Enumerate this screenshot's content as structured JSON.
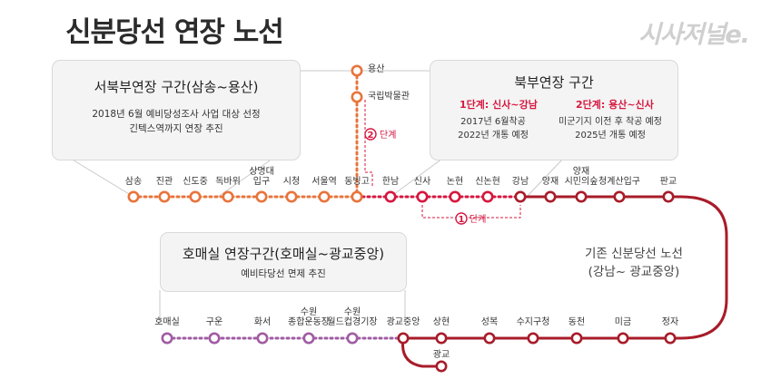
{
  "title": "신분당선 연장 노선",
  "logo_text": "시사저널e.",
  "colors": {
    "northwest": "#e8743b",
    "north": "#d6173f",
    "existing": "#a81c2a",
    "homaesil": "#a05ca3",
    "gray_line": "#c9c9c9"
  },
  "northwest_box": {
    "heading": "서북부연장 구간(삼송~용산)",
    "line1": "2018년 6월 예비당성조사 사업 대상 선정",
    "line2": "긴텍스역까지 연장 추진"
  },
  "north_box": {
    "heading": "북부연장 구간",
    "phase1_title": "1단계: 신사~강남",
    "phase1_line1": "2017년 6월착공",
    "phase1_line2": "2022년 개통 예정",
    "phase2_title": "2단계: 용산~신사",
    "phase2_line1": "미군기지 이전 후 착공 예정",
    "phase2_line2": "2025년 개통 예정"
  },
  "homaesil_box": {
    "heading": "호매실 연장구간(호매실~광교중앙)",
    "line1": "예비타당선 면제 추진"
  },
  "existing_label": {
    "line1": "기존 신분당선 노선",
    "line2": "(강남~ 광교중앙)"
  },
  "branch_stations": [
    "용산",
    "국립박물관"
  ],
  "phase_labels": {
    "phase1_num": "1",
    "phase1_text": "단계",
    "phase2_num": "2",
    "phase2_text": "단계"
  },
  "top_row_stations": [
    {
      "name": "삼송",
      "line": "northwest"
    },
    {
      "name": "진관",
      "line": "northwest"
    },
    {
      "name": "신도중",
      "line": "northwest"
    },
    {
      "name": "독바위",
      "line": "northwest"
    },
    {
      "name": "상명대\n입구",
      "line": "northwest"
    },
    {
      "name": "시청",
      "line": "northwest"
    },
    {
      "name": "서울역",
      "line": "northwest"
    },
    {
      "name": "동빙고",
      "line": "northwest"
    },
    {
      "name": "한남",
      "line": "north"
    },
    {
      "name": "신사",
      "line": "north"
    },
    {
      "name": "논현",
      "line": "north"
    },
    {
      "name": "신논현",
      "line": "north"
    },
    {
      "name": "강남",
      "line": "existing"
    },
    {
      "name": "양재",
      "line": "existing"
    },
    {
      "name": "양재\n시민의숲",
      "line": "existing"
    },
    {
      "name": "청계산입구",
      "line": "existing"
    },
    {
      "name": "판교",
      "line": "existing"
    }
  ],
  "bottom_row_stations": [
    {
      "name": "호매실",
      "line": "homaesil"
    },
    {
      "name": "구운",
      "line": "homaesil"
    },
    {
      "name": "화서",
      "line": "homaesil"
    },
    {
      "name": "수원\n종합운동장",
      "line": "homaesil"
    },
    {
      "name": "수원\n월드컵경기장",
      "line": "homaesil"
    },
    {
      "name": "광교중앙",
      "line": "existing"
    },
    {
      "name": "상현",
      "line": "existing"
    },
    {
      "name": "성복",
      "line": "existing"
    },
    {
      "name": "수지구청",
      "line": "existing"
    },
    {
      "name": "동천",
      "line": "existing"
    },
    {
      "name": "미금",
      "line": "existing"
    },
    {
      "name": "정자",
      "line": "existing"
    }
  ],
  "spur_station": "광교"
}
